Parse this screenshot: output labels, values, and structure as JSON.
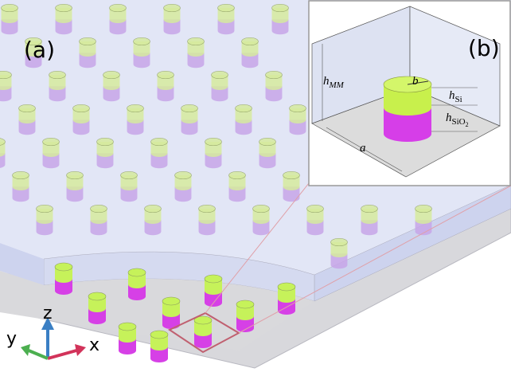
{
  "panels": [
    {
      "label": "(a)"
    },
    {
      "label": "(b)"
    }
  ],
  "parameters": {
    "height_mm": {
      "symbol": "h",
      "subscript": "MM"
    },
    "radius": "b",
    "height_si": {
      "symbol": "h",
      "subscript": "Si"
    },
    "height_sio2": {
      "symbol": "h",
      "subscript": "SiO",
      "subsubscript": "2"
    },
    "period": "a"
  },
  "axes": {
    "z": "z",
    "y": "y",
    "x": "x"
  }
}
